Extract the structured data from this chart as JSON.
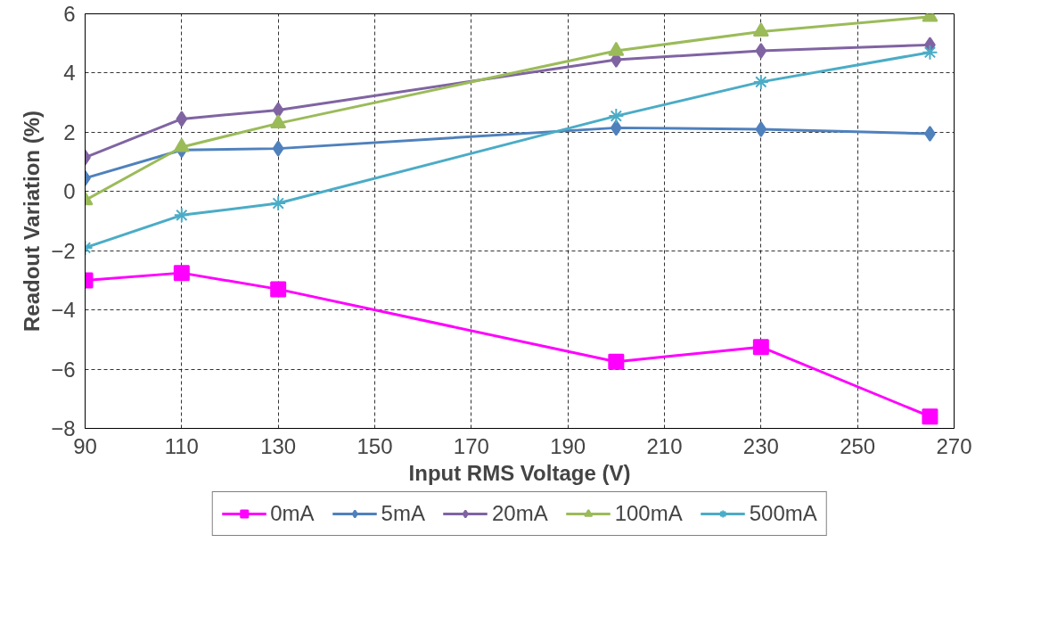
{
  "chart_data": {
    "type": "line",
    "xlabel": "Input RMS Voltage (V)",
    "ylabel": "Readout Variation (%)",
    "x": [
      90,
      110,
      130,
      200,
      230,
      265
    ],
    "series": [
      {
        "name": "0mA",
        "color": "#ff00ff",
        "marker": "square",
        "values": [
          -3.0,
          -2.75,
          -3.3,
          -5.75,
          -5.25,
          -7.6
        ]
      },
      {
        "name": "5mA",
        "color": "#4f81bd",
        "marker": "diamond",
        "values": [
          0.45,
          1.4,
          1.45,
          2.15,
          2.1,
          1.95
        ]
      },
      {
        "name": "20mA",
        "color": "#8064a2",
        "marker": "diamond",
        "values": [
          1.15,
          2.45,
          2.75,
          4.45,
          4.75,
          4.95
        ]
      },
      {
        "name": "100mA",
        "color": "#9bbb59",
        "marker": "triangle",
        "values": [
          -0.3,
          1.5,
          2.3,
          4.75,
          5.4,
          5.9
        ]
      },
      {
        "name": "500mA",
        "color": "#4bacc6",
        "marker": "cross",
        "values": [
          -1.9,
          -0.8,
          -0.4,
          2.55,
          3.7,
          4.7
        ]
      }
    ],
    "xlim": [
      90,
      270
    ],
    "xticks": [
      90,
      110,
      130,
      150,
      170,
      190,
      210,
      230,
      250,
      270
    ],
    "ylim": [
      -8,
      6
    ],
    "yticks": [
      -8,
      -6,
      -4,
      -2,
      0,
      2,
      4,
      6
    ],
    "grid": true,
    "legend": "bottom",
    "line_style": "solid"
  }
}
